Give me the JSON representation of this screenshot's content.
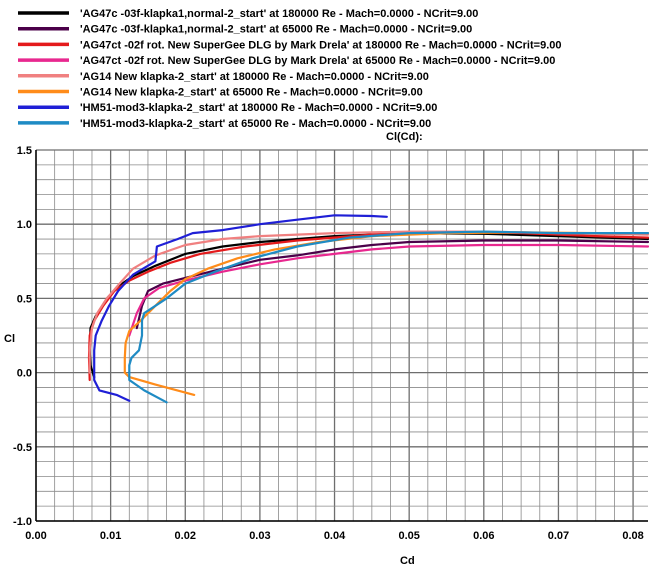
{
  "chart_data": {
    "type": "line",
    "title": "Cl(Cd):",
    "xlabel": "Cd",
    "ylabel": "Cl",
    "xlim": [
      0.0,
      0.082
    ],
    "ylim": [
      -1.0,
      1.5
    ],
    "grid": true,
    "legend_position": "top-left",
    "xticks": [
      "0.00",
      "0.01",
      "0.02",
      "0.03",
      "0.04",
      "0.05",
      "0.06",
      "0.07",
      "0.08"
    ],
    "yticks": [
      "-1.0",
      "-0.5",
      "0.0",
      "0.5",
      "1.0",
      "1.5"
    ],
    "series": [
      {
        "name": "'AG47c -03f-klapka1,normal-2_start' at 180000 Re - Mach=0.0000 - NCrit=9.00",
        "color": "#000000",
        "points": [
          [
            0.0078,
            -0.03
          ],
          [
            0.0073,
            0.05
          ],
          [
            0.0072,
            0.15
          ],
          [
            0.0073,
            0.3
          ],
          [
            0.008,
            0.38
          ],
          [
            0.0095,
            0.5
          ],
          [
            0.011,
            0.58
          ],
          [
            0.013,
            0.65
          ],
          [
            0.016,
            0.72
          ],
          [
            0.02,
            0.8
          ],
          [
            0.025,
            0.85
          ],
          [
            0.03,
            0.88
          ],
          [
            0.04,
            0.92
          ],
          [
            0.05,
            0.94
          ],
          [
            0.06,
            0.935
          ],
          [
            0.07,
            0.92
          ],
          [
            0.082,
            0.9
          ]
        ]
      },
      {
        "name": "'AG47c -03f-klapka1,normal-2_start' at 65000 Re - Mach=0.0000 - NCrit=9.00",
        "color": "#4b0049",
        "points": [
          [
            0.0135,
            0.3
          ],
          [
            0.0142,
            0.45
          ],
          [
            0.015,
            0.55
          ],
          [
            0.017,
            0.6
          ],
          [
            0.021,
            0.65
          ],
          [
            0.025,
            0.7
          ],
          [
            0.03,
            0.76
          ],
          [
            0.035,
            0.79
          ],
          [
            0.04,
            0.83
          ],
          [
            0.045,
            0.86
          ],
          [
            0.05,
            0.88
          ],
          [
            0.06,
            0.89
          ],
          [
            0.07,
            0.89
          ],
          [
            0.082,
            0.88
          ]
        ]
      },
      {
        "name": "'AG47ct  -02f rot. New SuperGee DLG by Mark Drela' at 180000 Re - Mach=0.0000 - NCrit=9.00",
        "color": "#e41a1c",
        "points": [
          [
            0.0072,
            -0.05
          ],
          [
            0.0071,
            0.1
          ],
          [
            0.0072,
            0.25
          ],
          [
            0.0078,
            0.35
          ],
          [
            0.009,
            0.45
          ],
          [
            0.0105,
            0.55
          ],
          [
            0.0125,
            0.62
          ],
          [
            0.015,
            0.68
          ],
          [
            0.018,
            0.74
          ],
          [
            0.022,
            0.8
          ],
          [
            0.028,
            0.85
          ],
          [
            0.035,
            0.89
          ],
          [
            0.045,
            0.93
          ],
          [
            0.055,
            0.95
          ],
          [
            0.065,
            0.94
          ],
          [
            0.075,
            0.92
          ],
          [
            0.082,
            0.91
          ]
        ]
      },
      {
        "name": "'AG47ct  -02f rot. New SuperGee DLG by Mark Drela' at 65000 Re - Mach=0.0000 - NCrit=9.00",
        "color": "#e8288f",
        "points": [
          [
            0.0125,
            0.25
          ],
          [
            0.0135,
            0.4
          ],
          [
            0.0145,
            0.5
          ],
          [
            0.0165,
            0.57
          ],
          [
            0.02,
            0.62
          ],
          [
            0.025,
            0.68
          ],
          [
            0.03,
            0.73
          ],
          [
            0.035,
            0.77
          ],
          [
            0.04,
            0.8
          ],
          [
            0.045,
            0.83
          ],
          [
            0.05,
            0.85
          ],
          [
            0.06,
            0.86
          ],
          [
            0.07,
            0.86
          ],
          [
            0.082,
            0.85
          ]
        ]
      },
      {
        "name": "'AG14 New klapka-2_start' at 180000 Re - Mach=0.0000 - NCrit=9.00",
        "color": "#f08080",
        "points": [
          [
            0.0072,
            0.0
          ],
          [
            0.0072,
            0.15
          ],
          [
            0.0075,
            0.3
          ],
          [
            0.0082,
            0.4
          ],
          [
            0.0095,
            0.5
          ],
          [
            0.0112,
            0.6
          ],
          [
            0.013,
            0.7
          ],
          [
            0.016,
            0.79
          ],
          [
            0.02,
            0.86
          ],
          [
            0.025,
            0.9
          ],
          [
            0.03,
            0.92
          ],
          [
            0.04,
            0.94
          ],
          [
            0.05,
            0.95
          ],
          [
            0.06,
            0.95
          ],
          [
            0.07,
            0.94
          ],
          [
            0.082,
            0.93
          ]
        ]
      },
      {
        "name": "'AG14 New klapka-2_start' at 65000 Re - Mach=0.0000 - NCrit=9.00",
        "color": "#ff8c1a",
        "points": [
          [
            0.0212,
            -0.15
          ],
          [
            0.016,
            -0.08
          ],
          [
            0.0125,
            -0.03
          ],
          [
            0.0119,
            0.0
          ],
          [
            0.0119,
            0.1
          ],
          [
            0.012,
            0.2
          ],
          [
            0.0125,
            0.28
          ],
          [
            0.014,
            0.35
          ],
          [
            0.016,
            0.45
          ],
          [
            0.018,
            0.55
          ],
          [
            0.02,
            0.63
          ],
          [
            0.023,
            0.7
          ],
          [
            0.027,
            0.77
          ],
          [
            0.032,
            0.83
          ],
          [
            0.038,
            0.88
          ],
          [
            0.045,
            0.92
          ],
          [
            0.055,
            0.94
          ],
          [
            0.065,
            0.945
          ],
          [
            0.075,
            0.94
          ],
          [
            0.082,
            0.94
          ]
        ]
      },
      {
        "name": "'HM51-mod3-klapka-2_start' at 180000 Re - Mach=0.0000 - NCrit=9.00",
        "color": "#1f1fd6",
        "points": [
          [
            0.0125,
            -0.19
          ],
          [
            0.0108,
            -0.15
          ],
          [
            0.0085,
            -0.12
          ],
          [
            0.0078,
            -0.05
          ],
          [
            0.0078,
            0.05
          ],
          [
            0.0078,
            0.15
          ],
          [
            0.008,
            0.25
          ],
          [
            0.0088,
            0.35
          ],
          [
            0.0098,
            0.45
          ],
          [
            0.011,
            0.55
          ],
          [
            0.013,
            0.66
          ],
          [
            0.016,
            0.75
          ],
          [
            0.0162,
            0.85
          ],
          [
            0.019,
            0.9
          ],
          [
            0.021,
            0.94
          ],
          [
            0.025,
            0.96
          ],
          [
            0.03,
            1.0
          ],
          [
            0.035,
            1.03
          ],
          [
            0.04,
            1.06
          ],
          [
            0.045,
            1.055
          ],
          [
            0.047,
            1.05
          ]
        ]
      },
      {
        "name": "'HM51-mod3-klapka-2_start' at 65000 Re - Mach=0.0000 - NCrit=9.00",
        "color": "#1f8bc4",
        "points": [
          [
            0.0175,
            -0.2
          ],
          [
            0.0145,
            -0.12
          ],
          [
            0.0125,
            -0.05
          ],
          [
            0.0125,
            0.05
          ],
          [
            0.0128,
            0.1
          ],
          [
            0.0138,
            0.15
          ],
          [
            0.0142,
            0.25
          ],
          [
            0.0142,
            0.35
          ],
          [
            0.0145,
            0.4
          ],
          [
            0.016,
            0.45
          ],
          [
            0.0175,
            0.5
          ],
          [
            0.02,
            0.6
          ],
          [
            0.024,
            0.68
          ],
          [
            0.029,
            0.77
          ],
          [
            0.035,
            0.85
          ],
          [
            0.042,
            0.91
          ],
          [
            0.05,
            0.94
          ],
          [
            0.06,
            0.95
          ],
          [
            0.07,
            0.94
          ],
          [
            0.082,
            0.94
          ]
        ]
      }
    ]
  }
}
